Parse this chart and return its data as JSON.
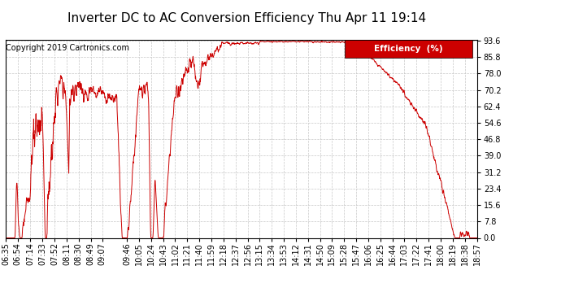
{
  "title": "Inverter DC to AC Conversion Efficiency Thu Apr 11 19:14",
  "copyright": "Copyright 2019 Cartronics.com",
  "legend_label": "Efficiency  (%)",
  "legend_bg": "#cc0000",
  "legend_fg": "#ffffff",
  "line_color": "#cc0000",
  "bg_color": "#ffffff",
  "plot_bg_color": "#ffffff",
  "grid_color": "#c8c8c8",
  "yticks": [
    0.0,
    7.8,
    15.6,
    23.4,
    31.2,
    39.0,
    46.8,
    54.6,
    62.4,
    70.2,
    78.0,
    85.8,
    93.6
  ],
  "ymin": 0.0,
  "ymax": 93.6,
  "xtick_labels": [
    "06:35",
    "06:54",
    "07:14",
    "07:33",
    "07:52",
    "08:11",
    "08:30",
    "08:49",
    "09:07",
    "09:46",
    "10:05",
    "10:24",
    "10:43",
    "11:02",
    "11:21",
    "11:40",
    "11:59",
    "12:18",
    "12:37",
    "12:56",
    "13:15",
    "13:34",
    "13:53",
    "14:12",
    "14:31",
    "14:50",
    "15:09",
    "15:28",
    "15:47",
    "16:06",
    "16:25",
    "16:44",
    "17:03",
    "17:22",
    "17:41",
    "18:00",
    "18:19",
    "18:38",
    "18:57"
  ],
  "title_fontsize": 11,
  "axis_fontsize": 7,
  "copyright_fontsize": 7
}
